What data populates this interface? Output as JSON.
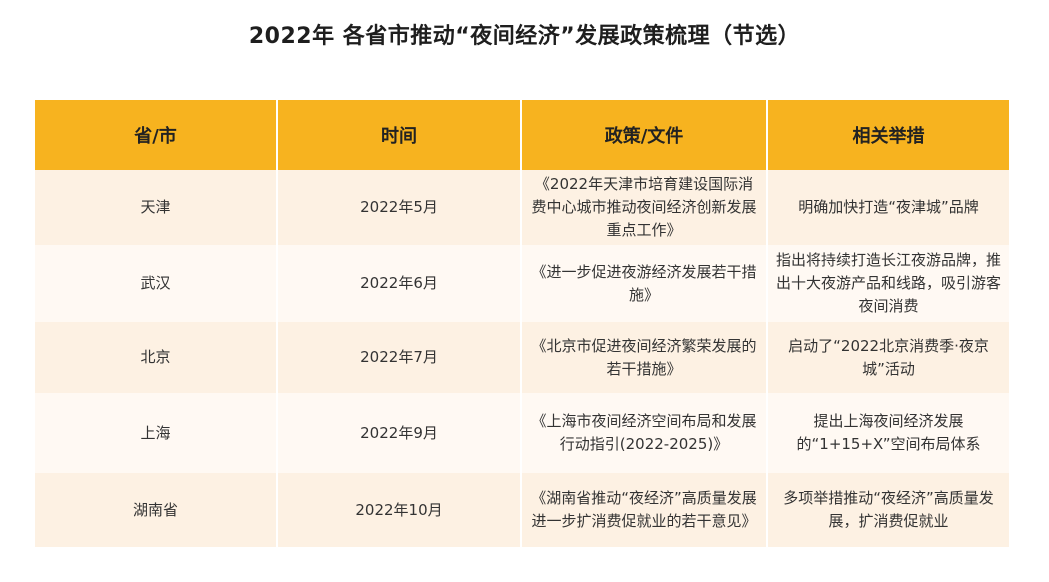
{
  "title": "2022年 各省市推动“夜间经济”发展政策梳理（节选）",
  "table": {
    "headers": [
      "省/市",
      "时间",
      "政策/文件",
      "相关举措"
    ],
    "rows": [
      {
        "region": "天津",
        "date": "2022年5月",
        "policy": "《2022年天津市培育建设国际消费中心城市推动夜间经济创新发展重点工作》",
        "measures": "明确加快打造“夜津城”品牌"
      },
      {
        "region": "武汉",
        "date": "2022年6月",
        "policy": "《进一步促进夜游经济发展若干措施》",
        "measures": "指出将持续打造长江夜游品牌，推出十大夜游产品和线路，吸引游客夜间消费"
      },
      {
        "region": "北京",
        "date": "2022年7月",
        "policy": "《北京市促进夜间经济繁荣发展的若干措施》",
        "measures": "启动了“2022北京消费季·夜京城”活动"
      },
      {
        "region": "上海",
        "date": "2022年9月",
        "policy": "《上海市夜间经济空间布局和发展行动指引(2022-2025)》",
        "measures": "提出上海夜间经济发展的“1+15+X”空间布局体系"
      },
      {
        "region": "湖南省",
        "date": "2022年10月",
        "policy": "《湖南省推动“夜经济”高质量发展 进一步扩消费促就业的若干意见》",
        "measures": "多项举措推动“夜经济”高质量发展，扩消费促就业"
      }
    ]
  },
  "colors": {
    "header_bg": "#f7b31f",
    "row_odd_bg": "#fdf1e3",
    "row_even_bg": "#fff9f3"
  }
}
